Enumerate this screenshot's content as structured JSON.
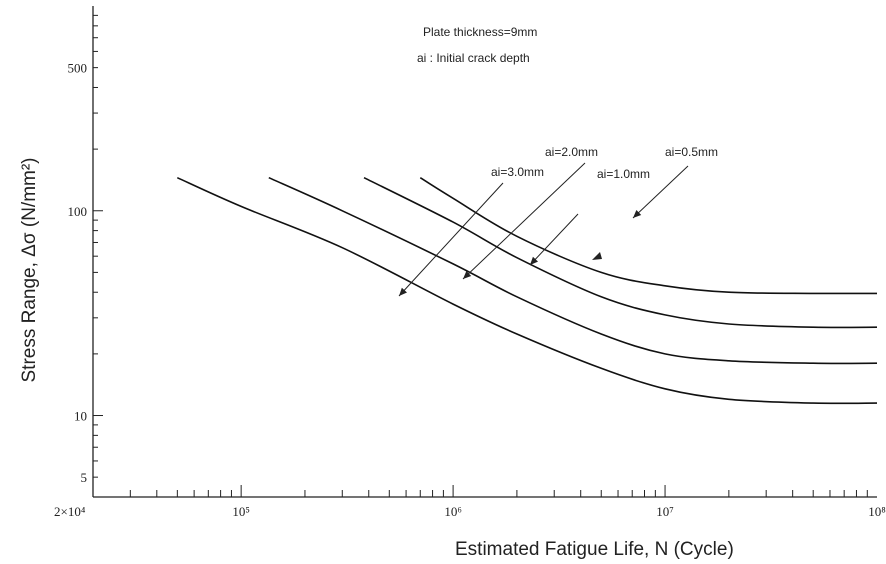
{
  "chart_data": {
    "type": "line",
    "title": "",
    "xlabel": "Estimated Fatigue Life, N (Cycle)",
    "ylabel": "Stress Range, Δσ (N/mm²)",
    "x_scale": "log",
    "y_scale": "log",
    "xlim": [
      20000,
      100000000
    ],
    "ylim": [
      4,
      1000
    ],
    "x_ticks": [
      {
        "value": 20000,
        "label": "2×10⁴"
      },
      {
        "value": 100000,
        "label": "10⁵"
      },
      {
        "value": 1000000,
        "label": "10⁶"
      },
      {
        "value": 10000000,
        "label": "10⁷"
      },
      {
        "value": 100000000,
        "label": "10⁸"
      }
    ],
    "y_ticks": [
      {
        "value": 5,
        "label": "5"
      },
      {
        "value": 10,
        "label": "10"
      },
      {
        "value": 100,
        "label": "100"
      },
      {
        "value": 500,
        "label": "500"
      }
    ],
    "annotations": [
      "Plate thickness=9mm",
      "ai : Initial crack depth"
    ],
    "series": [
      {
        "name": "ai=0.5mm",
        "x": [
          700000,
          1000000,
          2000000,
          5000000,
          10000000,
          20000000,
          50000000,
          100000000
        ],
        "y": [
          145,
          115,
          75,
          50,
          43,
          40,
          39.5,
          39.5
        ]
      },
      {
        "name": "ai=1.0mm",
        "x": [
          380000,
          1000000,
          2000000,
          5000000,
          10000000,
          20000000,
          50000000,
          100000000
        ],
        "y": [
          145,
          88,
          59,
          38,
          31,
          28,
          27,
          27
        ]
      },
      {
        "name": "ai=2.0mm",
        "x": [
          135000,
          300000,
          1000000,
          2000000,
          5000000,
          10000000,
          20000000,
          50000000,
          100000000
        ],
        "y": [
          145,
          100,
          55,
          38,
          25,
          20,
          18.5,
          18,
          18
        ]
      },
      {
        "name": "ai=3.0mm",
        "x": [
          50000,
          100000,
          300000,
          1000000,
          2000000,
          5000000,
          10000000,
          20000000,
          50000000,
          100000000
        ],
        "y": [
          145,
          105,
          66,
          35,
          25,
          17,
          13.5,
          12,
          11.5,
          11.5
        ]
      }
    ],
    "series_labels": [
      {
        "series": "ai=0.5mm",
        "text": "ai=0.5mm"
      },
      {
        "series": "ai=1.0mm",
        "text": "ai=1.0mm"
      },
      {
        "series": "ai=2.0mm",
        "text": "ai=2.0mm"
      },
      {
        "series": "ai=3.0mm",
        "text": "ai=3.0mm"
      }
    ],
    "grid": false,
    "line_color": "#111111"
  }
}
